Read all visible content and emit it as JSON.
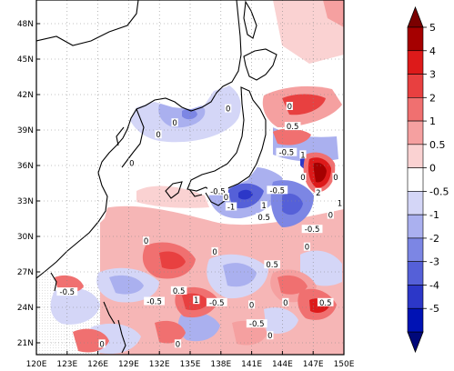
{
  "map": {
    "lon_ticks": [
      "120E",
      "123E",
      "126E",
      "129E",
      "132E",
      "135E",
      "138E",
      "141E",
      "144E",
      "147E",
      "150E"
    ],
    "lat_ticks": [
      "21N",
      "24N",
      "27N",
      "30N",
      "33N",
      "36N",
      "39N",
      "42N",
      "45N",
      "48N"
    ],
    "lon_range": [
      120,
      150
    ],
    "lat_range": [
      20,
      50
    ],
    "grid": "dotted"
  },
  "contour_labels": [
    {
      "text": "0",
      "lon": 131.9,
      "lat": 38.6
    },
    {
      "text": "0",
      "lon": 133.5,
      "lat": 39.6
    },
    {
      "text": "0",
      "lon": 138.7,
      "lat": 40.8
    },
    {
      "text": "0",
      "lon": 129.3,
      "lat": 36.2
    },
    {
      "text": "0",
      "lon": 144.7,
      "lat": 41.0
    },
    {
      "text": "0.5",
      "lon": 145.0,
      "lat": 39.3
    },
    {
      "text": "-0.5",
      "lon": 144.4,
      "lat": 37.1
    },
    {
      "text": "1",
      "lon": 146.0,
      "lat": 36.9
    },
    {
      "text": "0",
      "lon": 146.0,
      "lat": 35.0
    },
    {
      "text": "2",
      "lon": 147.5,
      "lat": 33.7
    },
    {
      "text": "0",
      "lon": 149.2,
      "lat": 35.0
    },
    {
      "text": "1",
      "lon": 149.6,
      "lat": 32.8
    },
    {
      "text": "-0.5",
      "lon": 143.5,
      "lat": 33.9
    },
    {
      "text": "-0.5",
      "lon": 137.7,
      "lat": 33.8
    },
    {
      "text": "0",
      "lon": 138.5,
      "lat": 33.3
    },
    {
      "text": "-1",
      "lon": 139.0,
      "lat": 32.5
    },
    {
      "text": "1",
      "lon": 142.2,
      "lat": 32.6
    },
    {
      "text": "0.5",
      "lon": 142.2,
      "lat": 31.6
    },
    {
      "text": "-0.5",
      "lon": 146.9,
      "lat": 30.6
    },
    {
      "text": "0",
      "lon": 148.7,
      "lat": 31.8
    },
    {
      "text": "0",
      "lon": 146.4,
      "lat": 29.1
    },
    {
      "text": "0",
      "lon": 130.7,
      "lat": 29.6
    },
    {
      "text": "0",
      "lon": 137.4,
      "lat": 28.7
    },
    {
      "text": "0.5",
      "lon": 143.0,
      "lat": 27.6
    },
    {
      "text": "0.5",
      "lon": 133.9,
      "lat": 25.4
    },
    {
      "text": "-0.5",
      "lon": 123.0,
      "lat": 25.3
    },
    {
      "text": "-0.5",
      "lon": 131.5,
      "lat": 24.5
    },
    {
      "text": "1",
      "lon": 135.6,
      "lat": 24.6
    },
    {
      "text": "-0.5",
      "lon": 137.6,
      "lat": 24.4
    },
    {
      "text": "0",
      "lon": 141.0,
      "lat": 24.2
    },
    {
      "text": "-0.5",
      "lon": 141.5,
      "lat": 22.6
    },
    {
      "text": "0",
      "lon": 144.3,
      "lat": 24.4
    },
    {
      "text": "0.5",
      "lon": 148.2,
      "lat": 24.4
    },
    {
      "text": "0",
      "lon": 126.4,
      "lat": 20.9
    },
    {
      "text": "0",
      "lon": 133.8,
      "lat": 20.9
    },
    {
      "text": "0",
      "lon": 142.8,
      "lat": 21.6
    }
  ],
  "colorbar": {
    "labels": [
      "5",
      "4",
      "3",
      "2",
      "1",
      "0.5",
      "0",
      "-0.5",
      "-1",
      "-2",
      "-3",
      "-4",
      "-5"
    ],
    "colors": [
      "#a50000",
      "#dd1a1a",
      "#e84040",
      "#f07070",
      "#f5a0a0",
      "#fad2d2",
      "#ffffff",
      "#d4d6f7",
      "#aab0ef",
      "#7c86e4",
      "#5560d8",
      "#2c37c8",
      "#0012b4"
    ],
    "top_triangle_color": "#7a0000",
    "bottom_triangle_color": "#00087a"
  }
}
